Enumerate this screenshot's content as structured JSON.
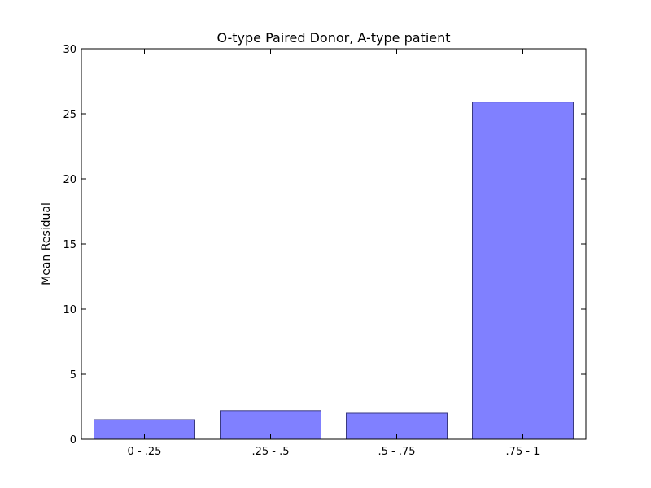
{
  "chart_data": {
    "type": "bar",
    "title": "O-type Paired Donor, A-type patient",
    "xlabel": "",
    "ylabel": "Mean Residual",
    "categories": [
      "0 - .25",
      ".25 - .5",
      ".5 - .75",
      ".75 - 1"
    ],
    "values": [
      1.5,
      2.2,
      2.0,
      25.9
    ],
    "ylim": [
      0,
      30
    ],
    "yticks": [
      0,
      5,
      10,
      15,
      20,
      25,
      30
    ],
    "grid": false,
    "legend": "none",
    "bar_color": "#8080ff",
    "bar_edge_color": "#3a3a80"
  }
}
